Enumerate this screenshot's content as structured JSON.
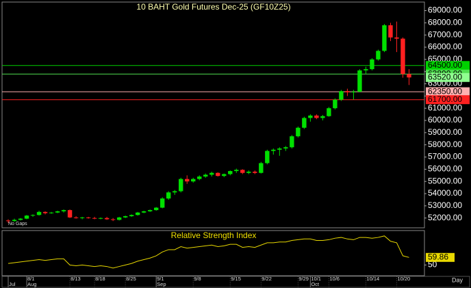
{
  "chart_data": [
    {
      "type": "candlestick",
      "title": "10 BAHT  Gold Futures Dec-25 (GF10Z25)",
      "note": "No Gaps",
      "up_color": "#00e000",
      "down_color": "#ff2020",
      "xlim": [
        -1,
        67.5
      ],
      "ylim": [
        51200,
        69700
      ],
      "yticks": [
        {
          "value": 52000,
          "label": "52000.00"
        },
        {
          "value": 53000,
          "label": "53000.00"
        },
        {
          "value": 54000,
          "label": "54000.00"
        },
        {
          "value": 55000,
          "label": "55000.00"
        },
        {
          "value": 56000,
          "label": "56000.00"
        },
        {
          "value": 57000,
          "label": "57000.00"
        },
        {
          "value": 58000,
          "label": "58000.00"
        },
        {
          "value": 59000,
          "label": "59000.00"
        },
        {
          "value": 60000,
          "label": "60000.00"
        },
        {
          "value": 61000,
          "label": "61000.00"
        },
        {
          "value": 62000,
          "label": "62000.00"
        },
        {
          "value": 63000,
          "label": "63000.00"
        },
        {
          "value": 64000,
          "label": "64000.00"
        },
        {
          "value": 65000,
          "label": "65000.00"
        },
        {
          "value": 66000,
          "label": "66000.00"
        },
        {
          "value": 67000,
          "label": "67000.00"
        },
        {
          "value": 68000,
          "label": "68000.00"
        },
        {
          "value": 69000,
          "label": "69000.00"
        }
      ],
      "levels": [
        {
          "value": 64500,
          "label": "64500.00",
          "color": "#00d000",
          "line": true
        },
        {
          "value": 63800,
          "label": "63800.00",
          "color": "#50e050",
          "line": true
        },
        {
          "value": 63520,
          "label": "63520.00",
          "color": "#90ff90",
          "line": false
        },
        {
          "value": 62350,
          "label": "62350.00",
          "color": "#ffb0b0",
          "line": true
        },
        {
          "value": 61700,
          "label": "61700.00",
          "color": "#ff2020",
          "line": true
        }
      ],
      "open": [
        51800,
        51750,
        51850,
        51950,
        52200,
        52250,
        52500,
        52400,
        52450,
        52550,
        52650,
        52050,
        52000,
        52050,
        52000,
        51950,
        52000,
        51900,
        51850,
        52050,
        52150,
        52250,
        52450,
        52550,
        52650,
        52850,
        53600,
        54100,
        54200,
        55200,
        55000,
        55200,
        55400,
        55550,
        55700,
        55450,
        55600,
        55850,
        55950,
        55700,
        55800,
        55700,
        56500,
        57500,
        57600,
        57700,
        57800,
        58700,
        59400,
        60200,
        60400,
        60200,
        60350,
        61000,
        61700,
        62400,
        62300,
        62350,
        64100,
        64200,
        65000,
        65700,
        67800,
        66800,
        66700,
        63800
      ],
      "high": [
        51900,
        51950,
        52000,
        52250,
        52300,
        52600,
        52550,
        52500,
        52600,
        52700,
        52700,
        52150,
        52100,
        52100,
        52100,
        52050,
        52100,
        52000,
        52100,
        52200,
        52300,
        52500,
        52600,
        52700,
        52900,
        53700,
        54200,
        54300,
        55300,
        55500,
        55300,
        55500,
        55650,
        55800,
        55750,
        55650,
        55900,
        56050,
        56000,
        55900,
        55900,
        56600,
        57600,
        57700,
        57800,
        57900,
        58800,
        59500,
        60300,
        60500,
        60500,
        60450,
        61100,
        61800,
        62500,
        62600,
        62500,
        64200,
        64400,
        65100,
        65800,
        67900,
        68000,
        68100,
        66800,
        64200
      ],
      "low": [
        51600,
        51700,
        51800,
        51900,
        52100,
        52200,
        52300,
        52350,
        52400,
        52450,
        52000,
        51950,
        51900,
        51950,
        51900,
        51900,
        51850,
        51750,
        51800,
        52000,
        52100,
        52200,
        52400,
        52500,
        52600,
        52800,
        53500,
        53900,
        54100,
        54800,
        54900,
        55100,
        55300,
        55400,
        55400,
        55350,
        55500,
        55700,
        55600,
        55600,
        55600,
        55650,
        56400,
        57200,
        57100,
        57500,
        57700,
        58600,
        59300,
        59900,
        60100,
        60000,
        60300,
        60900,
        61600,
        62000,
        61700,
        62300,
        63800,
        64100,
        64900,
        65600,
        66500,
        65600,
        63500,
        62900
      ],
      "close": [
        51750,
        51850,
        51950,
        52200,
        52250,
        52500,
        52400,
        52450,
        52550,
        52650,
        52050,
        52000,
        52050,
        52000,
        51950,
        52000,
        51900,
        51850,
        52050,
        52150,
        52250,
        52450,
        52550,
        52650,
        52850,
        53600,
        54100,
        54200,
        55200,
        55000,
        55200,
        55400,
        55550,
        55700,
        55450,
        55600,
        55850,
        55950,
        55700,
        55800,
        55700,
        56500,
        57500,
        57600,
        57700,
        57800,
        58700,
        59400,
        60200,
        60400,
        60200,
        60350,
        61000,
        61700,
        62400,
        62300,
        62350,
        64100,
        64200,
        65000,
        65700,
        67800,
        66800,
        66700,
        63800,
        63520
      ]
    },
    {
      "type": "line",
      "title": "Relative Strength Index",
      "color": "#e8d800",
      "xlim": [
        -1,
        67.5
      ],
      "ylim": [
        36,
        95
      ],
      "yticks": [
        50
      ],
      "values": [
        52,
        53,
        54,
        55,
        56,
        57,
        56,
        57,
        58,
        58,
        50,
        49,
        50,
        49,
        48,
        49,
        48,
        46,
        48,
        50,
        52,
        55,
        57,
        59,
        62,
        67,
        70,
        70,
        74,
        72,
        73,
        74,
        75,
        76,
        74,
        75,
        77,
        77,
        73,
        74,
        73,
        76,
        79,
        79,
        80,
        80,
        82,
        83,
        84,
        84,
        82,
        82,
        83,
        85,
        86,
        84,
        83,
        86,
        86,
        85,
        86,
        88,
        81,
        79,
        62,
        59.86
      ],
      "xticks": [
        {
          "value": 3,
          "label": "8/1"
        },
        {
          "value": 10,
          "label": "8/13"
        },
        {
          "value": 14,
          "label": "8/18"
        },
        {
          "value": 19,
          "label": "8/25"
        },
        {
          "value": 24,
          "label": "9/1"
        },
        {
          "value": 30,
          "label": "9/8"
        },
        {
          "value": 36,
          "label": "9/15"
        },
        {
          "value": 41,
          "label": "9/22"
        },
        {
          "value": 47,
          "label": "9/29"
        },
        {
          "value": 49,
          "label": "10/1"
        },
        {
          "value": 52,
          "label": "10/6"
        },
        {
          "value": 58,
          "label": "10/14"
        },
        {
          "value": 63,
          "label": "10/20"
        }
      ],
      "month_ticks": [
        {
          "value": 0,
          "label": "Jul"
        },
        {
          "value": 3,
          "label": "Aug"
        },
        {
          "value": 24,
          "label": "Sep"
        },
        {
          "value": 49,
          "label": "Oct"
        }
      ],
      "xlabel": "Day"
    }
  ]
}
